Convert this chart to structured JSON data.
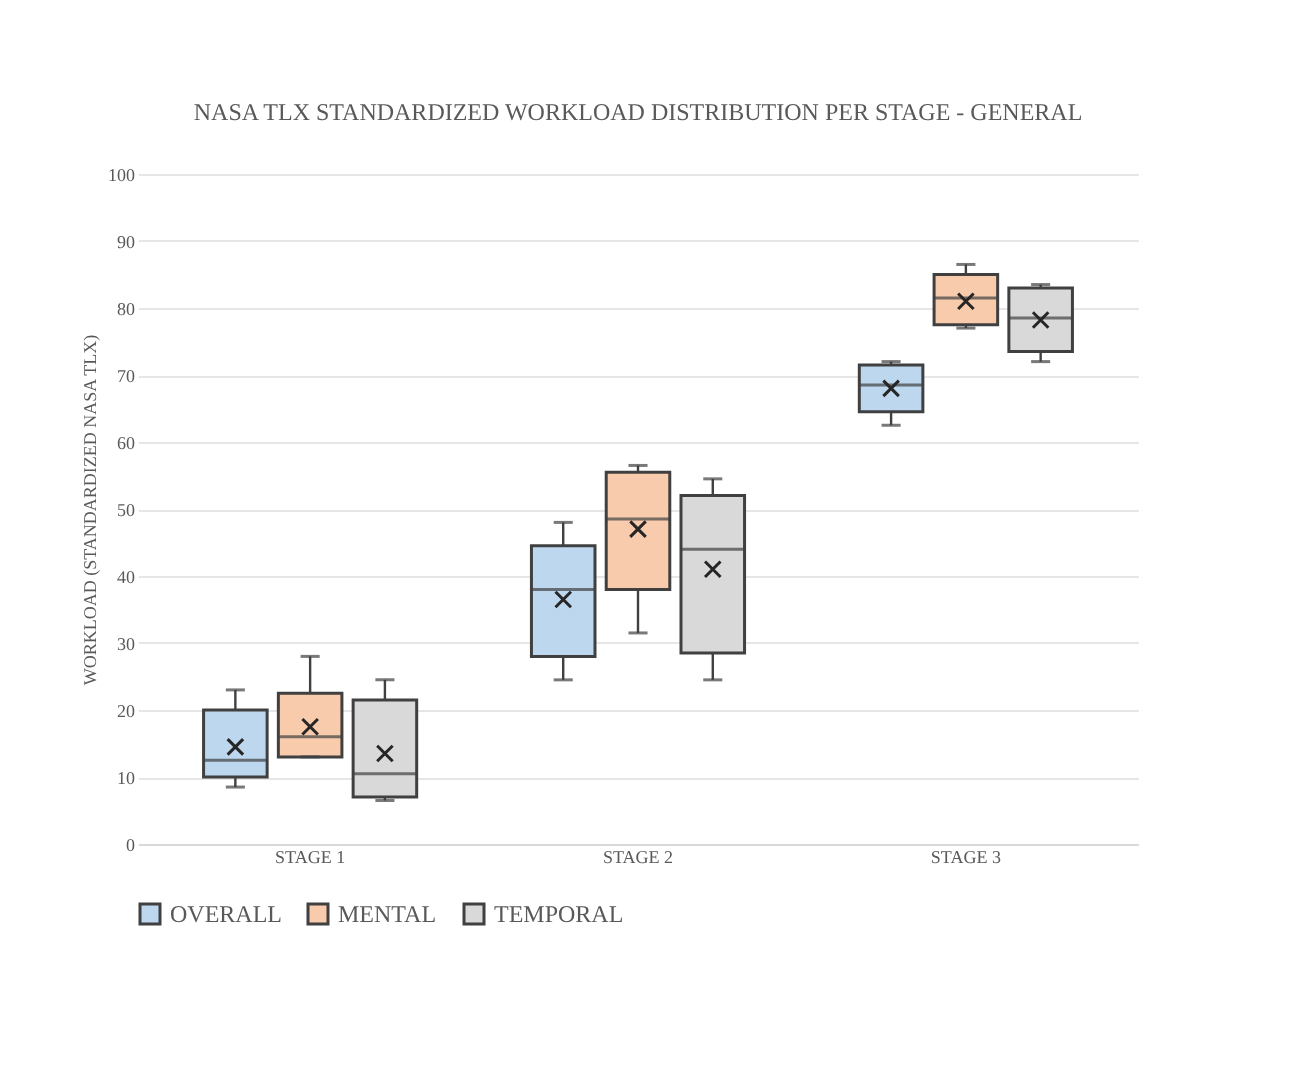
{
  "chart_data": {
    "type": "box",
    "title": "NASA TLX STANDARDIZED  WORKLOAD DISTRIBUTION PER STAGE - GENERAL",
    "ylabel": "WORKLOAD (STANDARDIZED NASA TLX)",
    "categories": [
      "STAGE 1",
      "STAGE 2",
      "STAGE 3"
    ],
    "ylim": [
      0,
      100
    ],
    "yticks": [
      0,
      10,
      20,
      30,
      40,
      50,
      60,
      70,
      80,
      90,
      100
    ],
    "grid": "y",
    "legend": "bottom",
    "series": [
      {
        "name": "OVERALL",
        "color": "#bdd7ee",
        "boxes": [
          {
            "low": 8.5,
            "q1": 10,
            "median": 12.5,
            "q3": 20,
            "high": 23,
            "mean": 14.5
          },
          {
            "low": 24.5,
            "q1": 28,
            "median": 38,
            "q3": 44.5,
            "high": 48,
            "mean": 36.5
          },
          {
            "low": 62.5,
            "q1": 64.5,
            "median": 68.5,
            "q3": 71.5,
            "high": 72,
            "mean": 68
          }
        ]
      },
      {
        "name": "MENTAL",
        "color": "#f8cbad",
        "boxes": [
          {
            "low": 13,
            "q1": 13,
            "median": 16,
            "q3": 22.5,
            "high": 28,
            "mean": 17.5
          },
          {
            "low": 31.5,
            "q1": 38,
            "median": 48.5,
            "q3": 55.5,
            "high": 56.5,
            "mean": 47
          },
          {
            "low": 77,
            "q1": 77.5,
            "median": 81.5,
            "q3": 85,
            "high": 86.5,
            "mean": 81
          }
        ]
      },
      {
        "name": "TEMPORAL",
        "color": "#d9d9d9",
        "boxes": [
          {
            "low": 6.5,
            "q1": 7,
            "median": 10.5,
            "q3": 21.5,
            "high": 24.5,
            "mean": 13.5
          },
          {
            "low": 24.5,
            "q1": 28.5,
            "median": 44,
            "q3": 52,
            "high": 54.5,
            "mean": 41
          },
          {
            "low": 72,
            "q1": 73.5,
            "median": 78.5,
            "q3": 83,
            "high": 83.5,
            "mean": 78.2
          }
        ]
      }
    ]
  }
}
